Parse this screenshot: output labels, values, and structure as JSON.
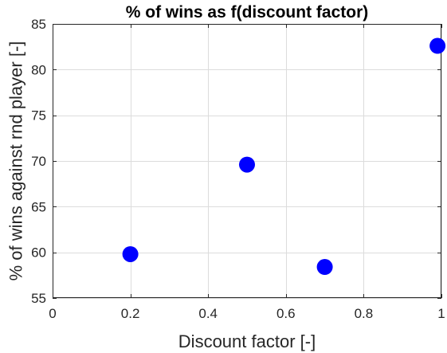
{
  "chart_data": {
    "type": "scatter",
    "title": "% of wins as f(discount factor)",
    "xlabel": "Discount factor [-]",
    "ylabel": "% of wins against rnd player [-]",
    "xlim": [
      0,
      1
    ],
    "ylim": [
      55,
      85
    ],
    "xticks": [
      0,
      0.2,
      0.4,
      0.6,
      0.8,
      1
    ],
    "xtick_labels": [
      "0",
      "0.2",
      "0.4",
      "0.6",
      "0.8",
      "1"
    ],
    "yticks": [
      55,
      60,
      65,
      70,
      75,
      80,
      85
    ],
    "ytick_labels": [
      "55",
      "60",
      "65",
      "70",
      "75",
      "80",
      "85"
    ],
    "grid": true,
    "marker_color": "#0000ff",
    "series": [
      {
        "x": [
          0.2,
          0.5,
          0.7,
          0.99
        ],
        "y": [
          59.8,
          69.6,
          58.4,
          82.6
        ]
      }
    ]
  }
}
